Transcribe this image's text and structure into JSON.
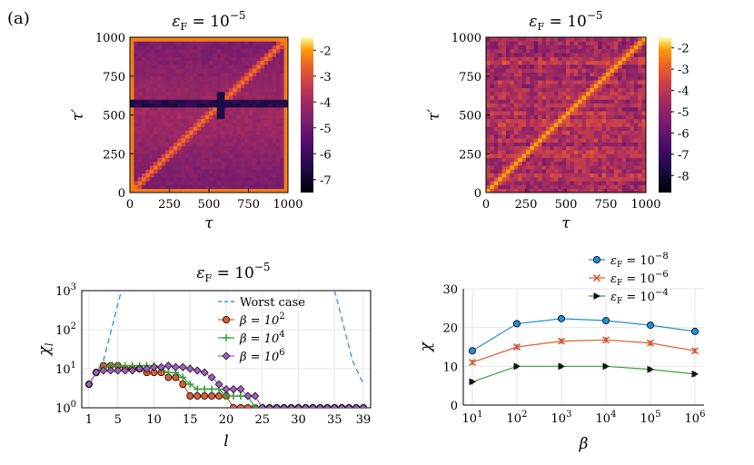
{
  "panel_label": "(a)",
  "chart_data": [
    {
      "type": "heatmap",
      "id": "heatmap-left",
      "title": "εF = 10−5",
      "title_main": "ε",
      "title_sub": "F",
      "title_rest": " = 10",
      "title_exp": "−5",
      "xlabel": "τ",
      "ylabel": "τ′",
      "xlim": [
        0,
        1000
      ],
      "ylim": [
        0,
        1000
      ],
      "xticks": [
        "0",
        "250",
        "500",
        "750",
        "1000"
      ],
      "yticks": [
        "0",
        "250",
        "500",
        "750",
        "1000"
      ],
      "colorbar_range": [
        -7.5,
        -1.5
      ],
      "colorbar_ticks": [
        "-2",
        "-3",
        "-4",
        "-5",
        "-6",
        "-7"
      ],
      "colormap": "inferno"
    },
    {
      "type": "heatmap",
      "id": "heatmap-right",
      "title": "εF = 10−5",
      "title_main": "ε",
      "title_sub": "F",
      "title_rest": " = 10",
      "title_exp": "−5",
      "xlabel": "τ",
      "ylabel": "τ′",
      "xlim": [
        0,
        1000
      ],
      "ylim": [
        0,
        1000
      ],
      "xticks": [
        "0",
        "250",
        "500",
        "750",
        "1000"
      ],
      "yticks": [
        "0",
        "250",
        "500",
        "750",
        "1000"
      ],
      "colorbar_range": [
        -8.8,
        -1.5
      ],
      "colorbar_ticks": [
        "-2",
        "-3",
        "-4",
        "-5",
        "-6",
        "-7",
        "-8"
      ],
      "colormap": "inferno"
    },
    {
      "type": "line",
      "id": "chi-l",
      "title": "εF = 10−5",
      "title_main": "ε",
      "title_sub": "F",
      "title_rest": " = 10",
      "title_exp": "−5",
      "xlabel": "l",
      "ylabel": "χl",
      "ylabel_main": "χ",
      "ylabel_sub": "l",
      "yscale": "log",
      "xlim": [
        0,
        40
      ],
      "ylim_exp": [
        0,
        3
      ],
      "xticks": [
        "1",
        "5",
        "10",
        "15",
        "20",
        "25",
        "30",
        "35",
        "39"
      ],
      "yticks": [
        "10^0",
        "10^1",
        "10^2",
        "10^3"
      ],
      "legend": [
        "Worst case",
        "β = 10^2",
        "β = 10^4",
        "β = 10^6"
      ],
      "series": [
        {
          "name": "Worst case",
          "color": "#3b9ae1",
          "style": "dashed",
          "segments": [
            [
              [
                1,
                4
              ],
              [
                3,
                16
              ],
              [
                5.5,
                1024
              ]
            ],
            [
              [
                35,
                1024
              ],
              [
                37.5,
                16
              ],
              [
                39,
                4
              ]
            ]
          ]
        },
        {
          "name": "β = 10^2",
          "color": "#e05c33",
          "marker": "circle",
          "x": [
            1,
            2,
            3,
            4,
            5,
            6,
            7,
            8,
            9,
            10,
            11,
            12,
            13,
            14,
            15,
            16,
            17,
            18,
            19,
            20,
            21,
            22,
            23,
            24,
            25,
            26,
            27,
            28,
            29,
            30,
            31,
            32,
            33,
            34,
            35,
            36,
            37,
            38,
            39
          ],
          "y": [
            4,
            8,
            12,
            12,
            12,
            10,
            10,
            10,
            8,
            8,
            8,
            6,
            6,
            4,
            2,
            2,
            2,
            2,
            2,
            2,
            1,
            1,
            1,
            1,
            1,
            1,
            1,
            1,
            1,
            1,
            1,
            1,
            1,
            1,
            1,
            1,
            1,
            1,
            1
          ]
        },
        {
          "name": "β = 10^4",
          "color": "#3aa13c",
          "marker": "plus",
          "x": [
            1,
            2,
            3,
            4,
            5,
            6,
            7,
            8,
            9,
            10,
            11,
            12,
            13,
            14,
            15,
            16,
            17,
            18,
            19,
            20,
            21,
            22,
            23,
            24,
            25,
            26,
            27,
            28,
            29,
            30,
            31,
            32,
            33,
            34,
            35,
            36,
            37,
            38,
            39
          ],
          "y": [
            4,
            8,
            10,
            12,
            12,
            12,
            12,
            12,
            12,
            12,
            10,
            8,
            8,
            6,
            4,
            3,
            3,
            3,
            3,
            2,
            2,
            2,
            2,
            1,
            1,
            1,
            1,
            1,
            1,
            1,
            1,
            1,
            1,
            1,
            1,
            1,
            1,
            1,
            1
          ]
        },
        {
          "name": "β = 10^6",
          "color": "#a35dbf",
          "marker": "diamond",
          "x": [
            1,
            2,
            3,
            4,
            5,
            6,
            7,
            8,
            9,
            10,
            11,
            12,
            13,
            14,
            15,
            16,
            17,
            18,
            19,
            20,
            21,
            22,
            23,
            24,
            25,
            26,
            27,
            28,
            29,
            30,
            31,
            32,
            33,
            34,
            35,
            36,
            37,
            38,
            39
          ],
          "y": [
            4,
            8,
            9,
            9,
            9,
            9,
            9,
            10,
            10,
            11,
            11,
            12,
            11,
            11,
            10,
            9,
            8,
            6,
            4,
            3,
            3,
            3,
            2,
            2,
            1,
            1,
            1,
            1,
            1,
            1,
            1,
            1,
            1,
            1,
            1,
            1,
            1,
            1,
            1
          ]
        }
      ]
    },
    {
      "type": "line",
      "id": "chi-beta",
      "xlabel": "β",
      "ylabel": "χ",
      "xscale": "log",
      "xlim_exp": [
        1,
        6
      ],
      "ylim": [
        0,
        30
      ],
      "xticks": [
        "10^1",
        "10^2",
        "10^3",
        "10^4",
        "10^5",
        "10^6"
      ],
      "yticks": [
        "0",
        "10",
        "20",
        "30"
      ],
      "legend": [
        "εF = 10^−8",
        "εF = 10^−6",
        "εF = 10^−4"
      ],
      "series": [
        {
          "name": "εF = 10^−8",
          "exp": "−8",
          "color": "#1f8fd6",
          "marker": "circle",
          "x": [
            10,
            100,
            1000,
            10000,
            100000,
            1000000
          ],
          "y": [
            14,
            21,
            22.3,
            21.8,
            20.6,
            19
          ]
        },
        {
          "name": "εF = 10^−6",
          "exp": "−6",
          "color": "#e05c33",
          "marker": "cross",
          "x": [
            10,
            100,
            1000,
            10000,
            100000,
            1000000
          ],
          "y": [
            11,
            15,
            16.5,
            16.8,
            16,
            14
          ]
        },
        {
          "name": "εF = 10^−4",
          "exp": "−4",
          "color": "#3aa13c",
          "marker": "triangle",
          "x": [
            10,
            100,
            1000,
            10000,
            100000,
            1000000
          ],
          "y": [
            6,
            10,
            10,
            10,
            9.2,
            8
          ]
        }
      ]
    }
  ]
}
